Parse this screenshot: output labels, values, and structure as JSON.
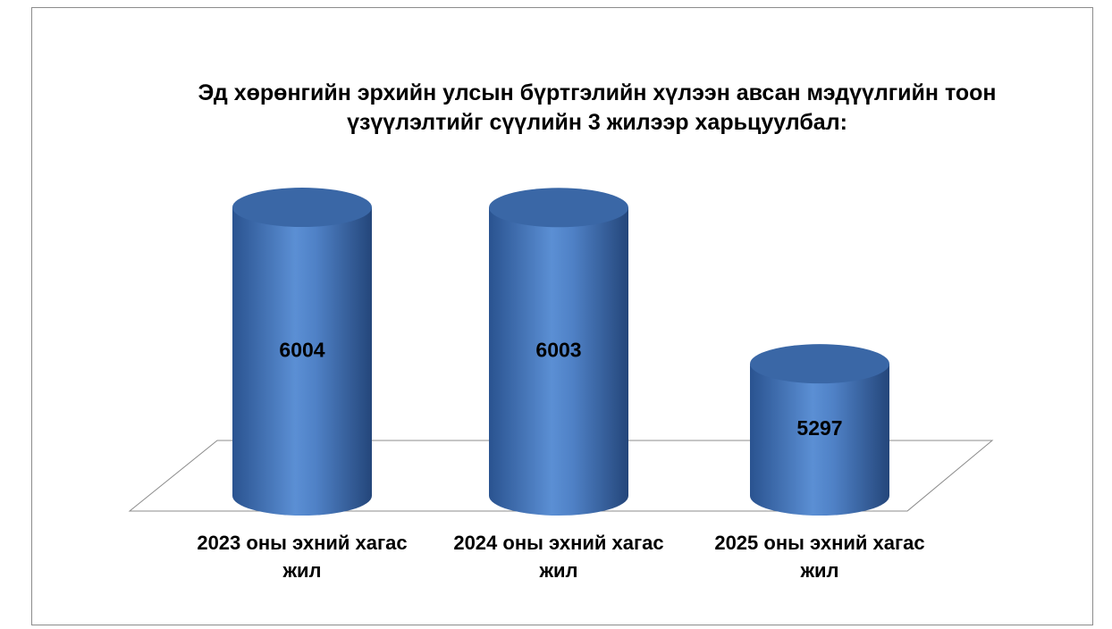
{
  "chart_data": {
    "type": "cylinder",
    "title": "Эд хөрөнгийн эрхийн улсын бүртгэлийн хүлээн авсан мэдүүлгийн тоон үзүүлэлтийг сүүлийн 3 жилээр харьцуулбал:",
    "categories": [
      "2023 оны эхний хагас жил",
      "2024 оны эхний хагас жил",
      "2025 оны эхний хагас жил"
    ],
    "values": [
      6004,
      6003,
      5297
    ],
    "color": "#4f81bd",
    "ylim": [
      4700,
      6200
    ]
  }
}
